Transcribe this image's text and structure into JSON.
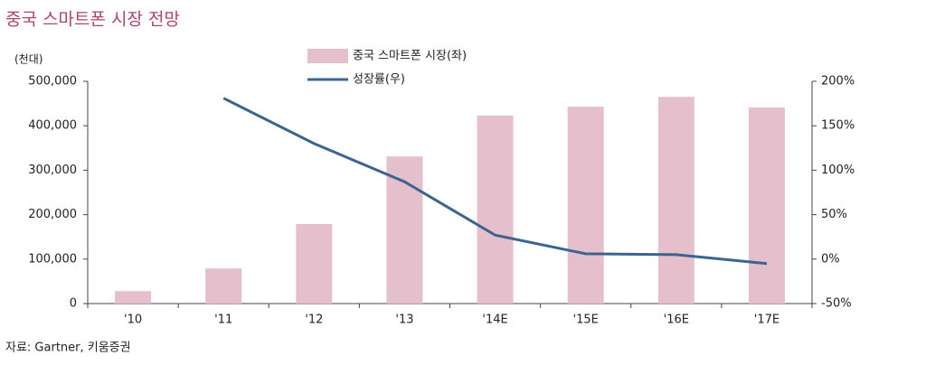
{
  "chart_data": {
    "type": "bar-line",
    "title": "중국 스마트폰 시장 전망",
    "y_label": "(천대)",
    "source": "자료: Gartner, 키움증권",
    "categories": [
      "'10",
      "'11",
      "'12",
      "'13",
      "'14E",
      "'15E",
      "'16E",
      "'17E"
    ],
    "series": [
      {
        "name": "중국 스마트폰 시장(좌)",
        "type": "bar",
        "color": "#e6bfcc",
        "values": [
          28000,
          79000,
          179000,
          331000,
          423000,
          443000,
          465000,
          441000
        ]
      },
      {
        "name": "성장률(우)",
        "type": "line",
        "axis": "y2",
        "color": "#3a6491",
        "values": [
          null,
          181,
          130,
          87,
          27,
          6,
          5,
          -5
        ]
      }
    ],
    "ylim": [
      0,
      500000
    ],
    "yticks": [
      0,
      {
        "value": 100000,
        "label": "100,000"
      },
      {
        "value": 200000,
        "label": "200,000"
      },
      {
        "value": 300000,
        "label": "300,000"
      },
      {
        "value": 400000,
        "label": "400,000"
      },
      {
        "value": 500000,
        "label": "500,000"
      }
    ],
    "y2lim": [
      -50,
      200
    ],
    "y2ticks": [
      {
        "value": -50,
        "label": "-50%"
      },
      {
        "value": 0,
        "label": "0%"
      },
      {
        "value": 50,
        "label": "50%"
      },
      {
        "value": 100,
        "label": "100%"
      },
      {
        "value": 150,
        "label": "150%"
      },
      {
        "value": 200,
        "label": "200%"
      }
    ],
    "grid": false
  }
}
